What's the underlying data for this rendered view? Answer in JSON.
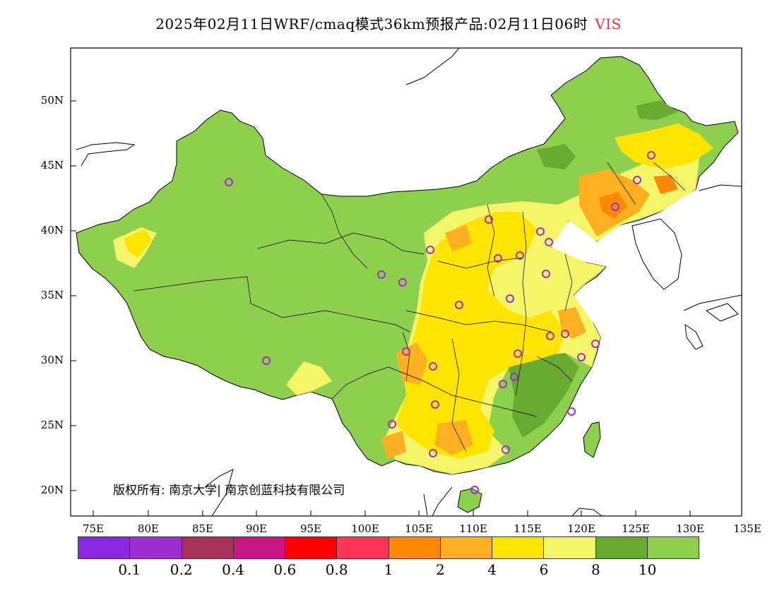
{
  "title": "2025年02月11日WRF/cmaq模式36km预报产品:02月11日06时",
  "variable": "VIS",
  "copyright": "版权所有: 南京大学| 南京创蓝科技有限公司",
  "lat_labels": [
    "50N",
    "45N",
    "40N",
    "35N",
    "30N",
    "25N",
    "20N"
  ],
  "lon_labels": [
    "75E",
    "80E",
    "85E",
    "90E",
    "95E",
    "100E",
    "105E",
    "110E",
    "115E",
    "120E",
    "125E",
    "130E",
    "135E"
  ],
  "legend": {
    "colors": [
      "#8a2be2",
      "#9b30d0",
      "#a8335a",
      "#c71585",
      "#ff0000",
      "#ff3355",
      "#ff8800",
      "#ffb020",
      "#ffe400",
      "#f5f56a",
      "#6aaa30",
      "#8ecf4e"
    ],
    "labels": [
      "0.1",
      "0.2",
      "0.4",
      "0.6",
      "0.8",
      "1",
      "2",
      "4",
      "6",
      "8",
      "10"
    ]
  },
  "colors": {
    "vis_high": "#8ecf4e",
    "vis_8_10": "#6aaa30",
    "vis_6_8": "#f5f56a",
    "vis_4_6": "#ffe400",
    "vis_2_4": "#ffb020",
    "vis_1_2": "#ff8800",
    "marker": "#9b30d0"
  }
}
